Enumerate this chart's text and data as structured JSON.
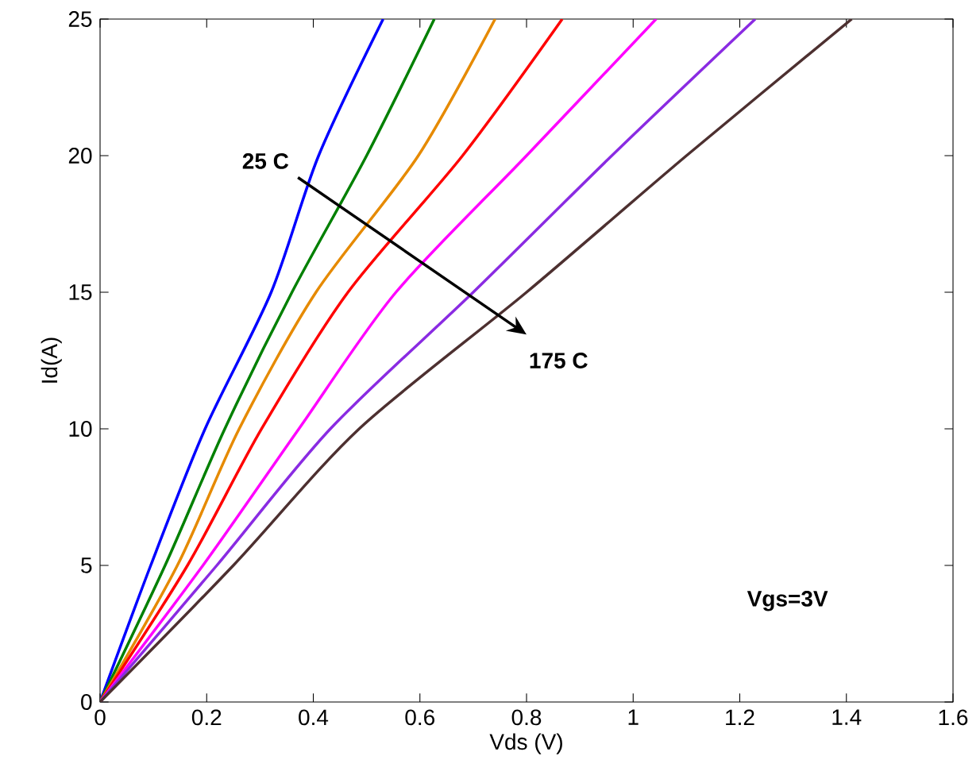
{
  "chart_data": {
    "type": "line",
    "xlabel": "Vds (V)",
    "ylabel": "Id(A)",
    "xlim": [
      0,
      1.6
    ],
    "ylim": [
      0,
      25
    ],
    "xticks": [
      0,
      0.2,
      0.4,
      0.6,
      0.8,
      1,
      1.2,
      1.4,
      1.6
    ],
    "yticks": [
      0,
      5,
      10,
      15,
      20,
      25
    ],
    "grid": false,
    "marker": "none",
    "line_style": "solid",
    "series": [
      {
        "color": "#0000ff",
        "x": [
          0,
          0.095,
          0.197,
          0.321,
          0.41,
          0.531
        ],
        "values": [
          0,
          5,
          10,
          15,
          20,
          25
        ]
      },
      {
        "color": "#008000",
        "x": [
          0,
          0.122,
          0.234,
          0.36,
          0.5,
          0.627
        ],
        "values": [
          0,
          5,
          10,
          15,
          20,
          25
        ]
      },
      {
        "color": "#e68a00",
        "x": [
          0,
          0.145,
          0.261,
          0.405,
          0.597,
          0.741
        ],
        "values": [
          0,
          5,
          10,
          15,
          20,
          25
        ]
      },
      {
        "color": "#ff0000",
        "x": [
          0,
          0.164,
          0.303,
          0.465,
          0.68,
          0.867
        ],
        "values": [
          0,
          5,
          10,
          15,
          20,
          25
        ]
      },
      {
        "color": "#ff00ff",
        "x": [
          0,
          0.193,
          0.373,
          0.555,
          0.8,
          1.043
        ],
        "values": [
          0,
          5,
          10,
          15,
          20,
          25
        ]
      },
      {
        "color": "#8a2be2",
        "x": [
          0,
          0.219,
          0.432,
          0.7,
          0.96,
          1.229
        ],
        "values": [
          0,
          5,
          10,
          15,
          20,
          25
        ]
      },
      {
        "color": "#4d3030",
        "x": [
          0,
          0.25,
          0.486,
          0.8,
          1.1,
          1.41
        ],
        "values": [
          0,
          5,
          10,
          15,
          20,
          25
        ]
      }
    ],
    "annotations": [
      "25 C",
      "175 C",
      "Vgs=3V"
    ]
  }
}
